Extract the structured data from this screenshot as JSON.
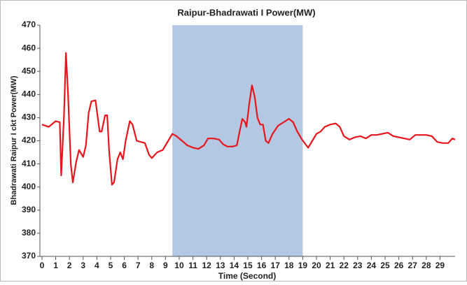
{
  "chart_data": {
    "type": "line",
    "title": "Raipur-Bhadrawati I Power(MW)",
    "xlabel": "Time (Second)",
    "ylabel": "Bhadrawati Raipur I ckt Power(MW)",
    "color": "#e8161c",
    "highlight_span": [
      9.5,
      19
    ],
    "highlight_color": "#b4c7e3",
    "x": [
      0,
      0.5,
      1,
      1.3,
      1.4,
      1.6,
      1.75,
      1.9,
      2.1,
      2.25,
      2.5,
      2.7,
      3.0,
      3.2,
      3.4,
      3.6,
      3.9,
      4.2,
      4.35,
      4.6,
      4.75,
      4.9,
      5.1,
      5.25,
      5.5,
      5.7,
      5.9,
      6.1,
      6.4,
      6.6,
      6.9,
      7.2,
      7.5,
      7.8,
      8.0,
      8.4,
      8.8,
      9.2,
      9.5,
      9.8,
      10.2,
      10.6,
      11.0,
      11.4,
      11.8,
      12.1,
      12.5,
      12.9,
      13.2,
      13.5,
      13.9,
      14.2,
      14.4,
      14.6,
      14.8,
      14.9,
      15.1,
      15.3,
      15.5,
      15.7,
      15.9,
      16.1,
      16.3,
      16.5,
      16.8,
      17.2,
      17.6,
      18.0,
      18.3,
      18.6,
      18.9,
      19.2,
      19.4,
      19.7,
      20.0,
      20.3,
      20.6,
      21.0,
      21.4,
      21.7,
      22.0,
      22.4,
      22.8,
      23.2,
      23.6,
      24.0,
      24.4,
      24.8,
      25.2,
      25.6,
      26.0,
      26.4,
      26.8,
      27.2,
      27.6,
      28.0,
      28.4,
      28.8,
      29.2,
      29.6,
      29.9,
      30.1
    ],
    "values": [
      427,
      426,
      428.5,
      428,
      405,
      430,
      458,
      440,
      410,
      402,
      411,
      416,
      413,
      418,
      432,
      437,
      437.5,
      424,
      424,
      431,
      431,
      415,
      401,
      402,
      412,
      415,
      412,
      420,
      428.5,
      427,
      420,
      419.5,
      419,
      414,
      412.5,
      415,
      416,
      420,
      423,
      422,
      420,
      418,
      417,
      416.5,
      418,
      421,
      421,
      420.5,
      418.5,
      417.5,
      417.5,
      418,
      424,
      429.5,
      428,
      426,
      436,
      444,
      439,
      430,
      427,
      427,
      420,
      419,
      423,
      426.5,
      428,
      429.5,
      428,
      424,
      421,
      418.5,
      417,
      420,
      423,
      424,
      426,
      427,
      427.5,
      426,
      422,
      420.5,
      421.5,
      422,
      421,
      422.5,
      422.5,
      423,
      423.5,
      422,
      421.5,
      421,
      420.5,
      422.5,
      422.5,
      422.5,
      422,
      419.5,
      419,
      419,
      421,
      420.5
    ],
    "xlim": [
      -0.15,
      30.1
    ],
    "xticks": [
      0,
      1,
      2,
      3,
      4,
      5,
      6,
      7,
      8,
      9,
      10,
      11,
      12,
      13,
      14,
      15,
      16,
      17,
      18,
      19,
      20,
      21,
      22,
      23,
      24,
      25,
      26,
      27,
      28,
      29
    ],
    "ylim": [
      370,
      470
    ],
    "yticks": [
      370,
      380,
      390,
      400,
      410,
      420,
      430,
      440,
      450,
      460,
      470
    ],
    "grid": false
  }
}
